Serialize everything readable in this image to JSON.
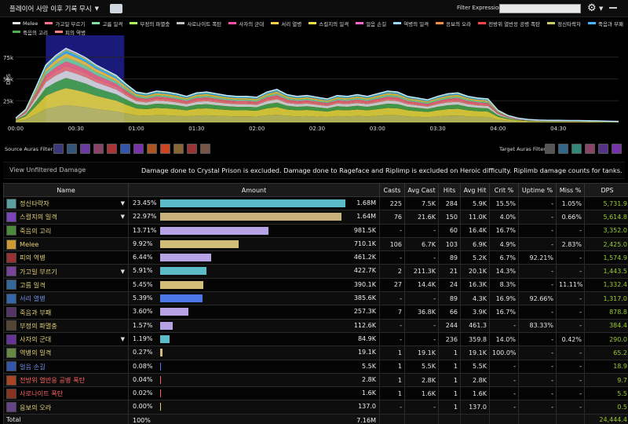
{
  "topbar": {
    "filter_menu_label": "플레이어 사망 이후 기록 무시",
    "filter_expression_label": "Filter Expression:",
    "filter_expression_value": ""
  },
  "legend": [
    {
      "name": "Melee",
      "color": "#e8e8e8"
    },
    {
      "name": "가고일 부르기",
      "color": "#ff6f8a"
    },
    {
      "name": "고름 일격",
      "color": "#7ee0a4"
    },
    {
      "name": "부정의 파멸충",
      "color": "#a8ff5a"
    },
    {
      "name": "사로나이트 폭탄",
      "color": "#c1c1c1"
    },
    {
      "name": "사자의 군대",
      "color": "#ff4fa3"
    },
    {
      "name": "서리 열병",
      "color": "#ffcf40"
    },
    {
      "name": "스컬지의 일격",
      "color": "#f2e142"
    },
    {
      "name": "얼음 손길",
      "color": "#ff66cc"
    },
    {
      "name": "역병의 일격",
      "color": "#9ad8ff"
    },
    {
      "name": "응보의 오라",
      "color": "#f78c3b"
    },
    {
      "name": "전방위 열반응 공병 폭탄",
      "color": "#ff4444"
    },
    {
      "name": "정신타락자",
      "color": "#cccc66"
    },
    {
      "name": "죽음과 부패",
      "color": "#3fb8ff"
    },
    {
      "name": "죽음의 고리",
      "color": "#4caf50"
    },
    {
      "name": "피의 역병",
      "color": "#ff8080"
    }
  ],
  "chart_data": {
    "type": "area",
    "ylabel": "DPS",
    "y_ticks": [
      "25k",
      "50k",
      "75k"
    ],
    "x_ticks": [
      "00:00",
      "00:30",
      "01:00",
      "01:30",
      "02:00",
      "02:30",
      "03:00",
      "03:30",
      "04:00",
      "04:30"
    ],
    "ylim": [
      0,
      100000
    ],
    "xlim_seconds": [
      0,
      300
    ],
    "highlight_window_seconds": [
      15,
      54
    ],
    "total_series": {
      "x_seconds": [
        0,
        5,
        10,
        15,
        20,
        25,
        30,
        35,
        40,
        45,
        50,
        55,
        60,
        65,
        70,
        75,
        80,
        85,
        90,
        95,
        100,
        105,
        110,
        115,
        120,
        125,
        130,
        135,
        140,
        145,
        150,
        155,
        160,
        165,
        170,
        175,
        180,
        185,
        190,
        195,
        200,
        205,
        210,
        215,
        220,
        225,
        230,
        235,
        240,
        245,
        250,
        255,
        260,
        265,
        270,
        275,
        280,
        285,
        290,
        295,
        300
      ],
      "dps": [
        5000,
        15000,
        40000,
        66000,
        77000,
        85000,
        80000,
        74000,
        66000,
        60000,
        54000,
        44000,
        35000,
        33000,
        36000,
        35000,
        33000,
        30000,
        34000,
        35000,
        33000,
        31000,
        30000,
        30000,
        29000,
        35000,
        38000,
        32000,
        30000,
        31000,
        29000,
        27000,
        31000,
        30000,
        32000,
        30000,
        33000,
        36000,
        35000,
        30000,
        28000,
        26000,
        30000,
        33000,
        34000,
        30000,
        28000,
        27000,
        14000,
        8000,
        5000,
        3500,
        2800,
        2500,
        2500,
        2300,
        2200,
        2000,
        1800,
        1500,
        1200
      ]
    },
    "series_shares": [
      {
        "name": "정신타락자",
        "share": 0.2345
      },
      {
        "name": "스컬지의 일격",
        "share": 0.2297
      },
      {
        "name": "죽음의 고리",
        "share": 0.1371
      },
      {
        "name": "Melee",
        "share": 0.0992
      },
      {
        "name": "피의 역병",
        "share": 0.0644
      },
      {
        "name": "가고일 부르기",
        "share": 0.0591
      },
      {
        "name": "고름 일격",
        "share": 0.0545
      },
      {
        "name": "서리 열병",
        "share": 0.0539
      },
      {
        "name": "죽음과 부패",
        "share": 0.036
      },
      {
        "name": "부정의 파멸충",
        "share": 0.0157
      },
      {
        "name": "사자의 군대",
        "share": 0.0119
      }
    ]
  },
  "auras": {
    "source_label": "Source Auras Filter:",
    "target_label": "Target Auras Filter:",
    "source_icons": [
      {
        "name": "aura-icon-1",
        "color": "#3a3a7a"
      },
      {
        "name": "aura-icon-2",
        "color": "#335577"
      },
      {
        "name": "aura-icon-3",
        "color": "#6a3aa0"
      },
      {
        "name": "aura-icon-4",
        "color": "#884466"
      },
      {
        "name": "aura-icon-5",
        "color": "#aa3333"
      },
      {
        "name": "aura-icon-6",
        "color": "#3355aa"
      },
      {
        "name": "aura-icon-7",
        "color": "#7733aa"
      },
      {
        "name": "aura-icon-8",
        "color": "#aa5522"
      },
      {
        "name": "aura-icon-9",
        "color": "#cc4422"
      },
      {
        "name": "aura-icon-10",
        "color": "#886633"
      },
      {
        "name": "aura-icon-11",
        "color": "#993333"
      },
      {
        "name": "aura-icon-12",
        "color": "#775544"
      }
    ],
    "target_icons": [
      {
        "name": "target-aura-icon-1",
        "color": "#555555"
      },
      {
        "name": "target-aura-icon-2",
        "color": "#336688"
      },
      {
        "name": "target-aura-icon-3",
        "color": "#338877"
      },
      {
        "name": "target-aura-icon-4",
        "color": "#884466"
      },
      {
        "name": "target-aura-icon-5",
        "color": "#553388"
      },
      {
        "name": "target-aura-icon-6",
        "color": "#7733aa"
      }
    ]
  },
  "info_bar": {
    "view_unfiltered": "View Unfiltered Damage",
    "notice": "Damage done to Crystal Prison is excluded. Damage done to Rageface and Riplimp is excluded on Heroic difficulty. Riplimb damage counts for tanks."
  },
  "table": {
    "headers": [
      "Name",
      "Amount",
      "Casts",
      "Avg Cast",
      "Hits",
      "Avg Hit",
      "Crit %",
      "Uptime %",
      "Miss %",
      "DPS",
      "+"
    ],
    "rows": [
      {
        "name": "정신타락자",
        "color": "#e0d078",
        "icon": "#5aa0a0",
        "caret": true,
        "pct": "23.45%",
        "frac": 1.0,
        "bar": "#5bbcc8",
        "amount": "1.68M",
        "casts": "225",
        "avg_cast": "7.5K",
        "hits": "284",
        "avg_hit": "5.9K",
        "crit": "15.5%",
        "uptime": "-",
        "miss": "1.05%",
        "dps": "5,731.9"
      },
      {
        "name": "스컬지의 일격",
        "color": "#e0d078",
        "icon": "#7a44bb",
        "caret": true,
        "pct": "22.97%",
        "frac": 0.98,
        "bar": "#c9b27a",
        "amount": "1.64M",
        "casts": "76",
        "avg_cast": "21.6K",
        "hits": "150",
        "avg_hit": "11.0K",
        "crit": "4.0%",
        "uptime": "-",
        "miss": "0.66%",
        "dps": "5,614.8"
      },
      {
        "name": "죽음의 고리",
        "color": "#e0d078",
        "icon": "#4a8a3a",
        "caret": false,
        "pct": "13.71%",
        "frac": 0.585,
        "bar": "#b7a2e6",
        "amount": "981.5K",
        "casts": "-",
        "avg_cast": "-",
        "hits": "60",
        "avg_hit": "16.4K",
        "crit": "16.7%",
        "uptime": "-",
        "miss": "-",
        "dps": "3,352.0"
      },
      {
        "name": "Melee",
        "color": "#e0d078",
        "icon": "#cc9933",
        "caret": false,
        "pct": "9.92%",
        "frac": 0.423,
        "bar": "#d2bd78",
        "amount": "710.1K",
        "casts": "106",
        "avg_cast": "6.7K",
        "hits": "103",
        "avg_hit": "6.9K",
        "crit": "4.9%",
        "uptime": "-",
        "miss": "2.83%",
        "dps": "2,425.0"
      },
      {
        "name": "피의 역병",
        "color": "#e0d078",
        "icon": "#993333",
        "caret": false,
        "pct": "6.44%",
        "frac": 0.275,
        "bar": "#b7a2e6",
        "amount": "461.2K",
        "casts": "-",
        "avg_cast": "-",
        "hits": "89",
        "avg_hit": "5.2K",
        "crit": "6.7%",
        "uptime": "92.21%",
        "miss": "-",
        "dps": "1,574.9"
      },
      {
        "name": "가고일 부르기",
        "color": "#e0d078",
        "icon": "#774499",
        "caret": true,
        "pct": "5.91%",
        "frac": 0.252,
        "bar": "#5bbcc8",
        "amount": "422.7K",
        "casts": "2",
        "avg_cast": "211.3K",
        "hits": "21",
        "avg_hit": "20.1K",
        "crit": "14.3%",
        "uptime": "-",
        "miss": "-",
        "dps": "1,443.5"
      },
      {
        "name": "고름 일격",
        "color": "#e0d078",
        "icon": "#336699",
        "caret": false,
        "pct": "5.45%",
        "frac": 0.232,
        "bar": "#d2bd78",
        "amount": "390.1K",
        "casts": "27",
        "avg_cast": "14.4K",
        "hits": "24",
        "avg_hit": "16.3K",
        "crit": "8.3%",
        "uptime": "-",
        "miss": "11.11%",
        "dps": "1,332.4"
      },
      {
        "name": "서리 열병",
        "color": "#6f8fe6",
        "icon": "#3366aa",
        "caret": false,
        "pct": "5.39%",
        "frac": 0.23,
        "bar": "#4a78e6",
        "amount": "385.6K",
        "casts": "-",
        "avg_cast": "-",
        "hits": "89",
        "avg_hit": "4.3K",
        "crit": "16.9%",
        "uptime": "92.66%",
        "miss": "-",
        "dps": "1,317.0"
      },
      {
        "name": "죽음과 부패",
        "color": "#e0d078",
        "icon": "#553366",
        "caret": false,
        "pct": "3.60%",
        "frac": 0.154,
        "bar": "#b7a2e6",
        "amount": "257.3K",
        "casts": "7",
        "avg_cast": "36.8K",
        "hits": "66",
        "avg_hit": "3.9K",
        "crit": "16.7%",
        "uptime": "-",
        "miss": "-",
        "dps": "878.8"
      },
      {
        "name": "부정의 파멸충",
        "color": "#e0d078",
        "icon": "#554433",
        "caret": false,
        "pct": "1.57%",
        "frac": 0.067,
        "bar": "#b7a2e6",
        "amount": "112.6K",
        "casts": "-",
        "avg_cast": "-",
        "hits": "244",
        "avg_hit": "461.3",
        "crit": "-",
        "uptime": "83.33%",
        "miss": "-",
        "dps": "384.4"
      },
      {
        "name": "사자의 군대",
        "color": "#e0d078",
        "icon": "#663399",
        "caret": true,
        "pct": "1.19%",
        "frac": 0.051,
        "bar": "#5bbcc8",
        "amount": "84.9K",
        "casts": "-",
        "avg_cast": "-",
        "hits": "236",
        "avg_hit": "359.8",
        "crit": "14.0%",
        "uptime": "-",
        "miss": "0.42%",
        "dps": "290.0"
      },
      {
        "name": "역병의 일격",
        "color": "#e0d078",
        "icon": "#668844",
        "caret": false,
        "pct": "0.27%",
        "frac": 0.012,
        "bar": "#d2bd78",
        "amount": "19.1K",
        "casts": "1",
        "avg_cast": "19.1K",
        "hits": "1",
        "avg_hit": "19.1K",
        "crit": "100.0%",
        "uptime": "-",
        "miss": "-",
        "dps": "65.2"
      },
      {
        "name": "얼음 손길",
        "color": "#6f8fe6",
        "icon": "#3355aa",
        "caret": false,
        "pct": "0.08%",
        "frac": 0.004,
        "bar": "#4a78e6",
        "amount": "5.5K",
        "casts": "1",
        "avg_cast": "5.5K",
        "hits": "1",
        "avg_hit": "5.5K",
        "crit": "-",
        "uptime": "-",
        "miss": "-",
        "dps": "18.9"
      },
      {
        "name": "전방위 열반응 공병 폭탄",
        "color": "#ff6060",
        "icon": "#aa4422",
        "caret": false,
        "pct": "0.04%",
        "frac": 0.002,
        "bar": "#ff6060",
        "amount": "2.8K",
        "casts": "1",
        "avg_cast": "2.8K",
        "hits": "1",
        "avg_hit": "2.8K",
        "crit": "-",
        "uptime": "-",
        "miss": "-",
        "dps": "9.7"
      },
      {
        "name": "사로나이트 폭탄",
        "color": "#ff6060",
        "icon": "#883322",
        "caret": false,
        "pct": "0.02%",
        "frac": 0.001,
        "bar": "#ff6060",
        "amount": "1.6K",
        "casts": "1",
        "avg_cast": "1.6K",
        "hits": "1",
        "avg_hit": "1.6K",
        "crit": "-",
        "uptime": "-",
        "miss": "-",
        "dps": "5.5"
      },
      {
        "name": "응보의 오라",
        "color": "#e0d078",
        "icon": "#664488",
        "caret": false,
        "pct": "0.00%",
        "frac": 0.0005,
        "bar": "#e0d078",
        "amount": "137.0",
        "casts": "-",
        "avg_cast": "-",
        "hits": "1",
        "avg_hit": "137.0",
        "crit": "-",
        "uptime": "-",
        "miss": "-",
        "dps": "0.5"
      }
    ],
    "total": {
      "label": "Total",
      "pct": "100%",
      "amount": "7.16M",
      "dps": "24,444.4"
    }
  }
}
